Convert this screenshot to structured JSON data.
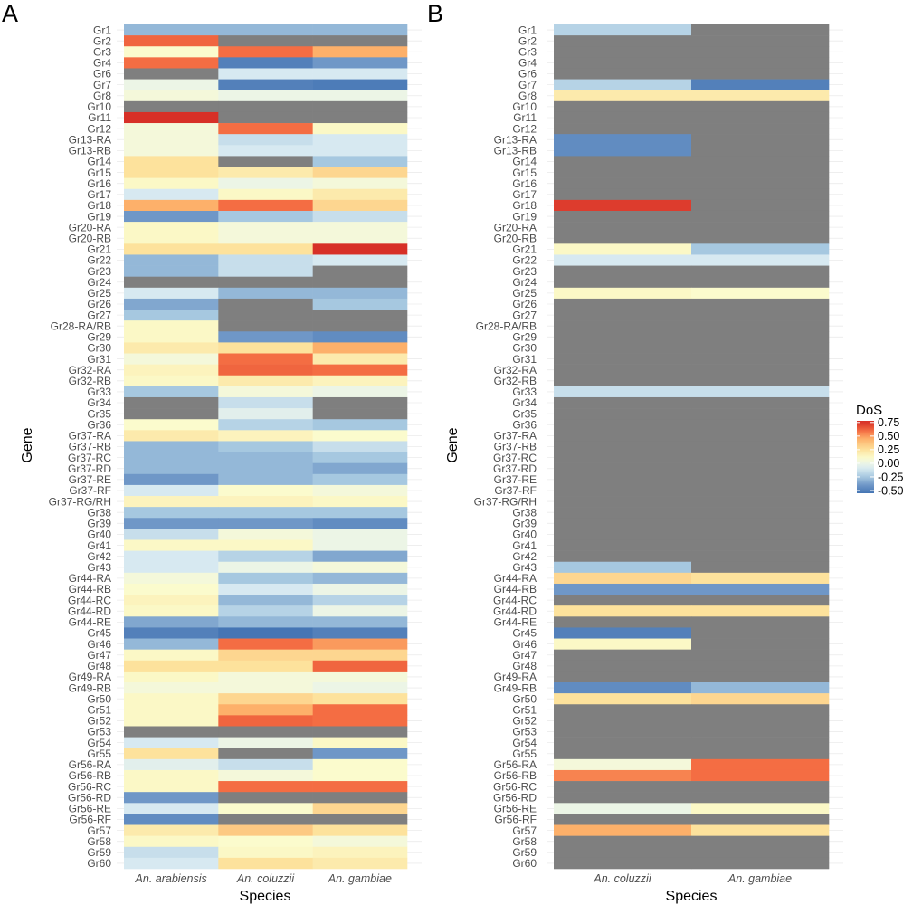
{
  "palette": {
    "na": "#7f7f7f",
    "stops": [
      {
        "v": -0.55,
        "c": "#4575b4"
      },
      {
        "v": -0.4,
        "c": "#6f97c7"
      },
      {
        "v": -0.25,
        "c": "#a6c8e0"
      },
      {
        "v": -0.1,
        "c": "#d7e9f1"
      },
      {
        "v": 0.0,
        "c": "#ecf5e6"
      },
      {
        "v": 0.1,
        "c": "#fbfbcd"
      },
      {
        "v": 0.25,
        "c": "#fde29c"
      },
      {
        "v": 0.45,
        "c": "#fdb06a"
      },
      {
        "v": 0.6,
        "c": "#f46d43"
      },
      {
        "v": 0.75,
        "c": "#d73027"
      }
    ]
  },
  "legend": {
    "title": "DoS",
    "labels": [
      "0.75",
      "0.50",
      "0.25",
      "0.00",
      "-0.25",
      "-0.50"
    ],
    "values": [
      0.75,
      0.5,
      0.25,
      0.0,
      -0.25,
      -0.5
    ],
    "range": [
      -0.55,
      0.78
    ]
  },
  "chart_data": [
    {
      "type": "heatmap",
      "panel_label": "A",
      "xlabel": "Species",
      "ylabel": "Gene",
      "species": [
        "An. arabiensis",
        "An. coluzzii",
        "An. gambiae"
      ],
      "genes": [
        "Gr1",
        "Gr2",
        "Gr3",
        "Gr4",
        "Gr6",
        "Gr7",
        "Gr8",
        "Gr10",
        "Gr11",
        "Gr12",
        "Gr13-RA",
        "Gr13-RB",
        "Gr14",
        "Gr15",
        "Gr16",
        "Gr17",
        "Gr18",
        "Gr19",
        "Gr20-RA",
        "Gr20-RB",
        "Gr21",
        "Gr22",
        "Gr23",
        "Gr24",
        "Gr25",
        "Gr26",
        "Gr27",
        "Gr28-RA/RB",
        "Gr29",
        "Gr30",
        "Gr31",
        "Gr32-RA",
        "Gr32-RB",
        "Gr33",
        "Gr34",
        "Gr35",
        "Gr36",
        "Gr37-RA",
        "Gr37-RB",
        "Gr37-RC",
        "Gr37-RD",
        "Gr37-RE",
        "Gr37-RF",
        "Gr37-RG/RH",
        "Gr38",
        "Gr39",
        "Gr40",
        "Gr41",
        "Gr42",
        "Gr43",
        "Gr44-RA",
        "Gr44-RB",
        "Gr44-RC",
        "Gr44-RD",
        "Gr44-RE",
        "Gr45",
        "Gr46",
        "Gr47",
        "Gr48",
        "Gr49-RA",
        "Gr49-RB",
        "Gr50",
        "Gr51",
        "Gr52",
        "Gr53",
        "Gr54",
        "Gr55",
        "Gr56-RA",
        "Gr56-RB",
        "Gr56-RC",
        "Gr56-RD",
        "Gr56-RE",
        "Gr56-RF",
        "Gr57",
        "Gr58",
        "Gr59",
        "Gr60"
      ],
      "values": [
        [
          -0.3,
          -0.3,
          -0.3
        ],
        [
          0.62,
          null,
          null
        ],
        [
          0.1,
          0.6,
          0.45
        ],
        [
          0.6,
          -0.5,
          -0.4
        ],
        [
          null,
          -0.1,
          -0.1
        ],
        [
          0.0,
          -0.5,
          -0.52
        ],
        [
          0.05,
          0.0,
          0.0
        ],
        [
          null,
          null,
          null
        ],
        [
          0.75,
          null,
          null
        ],
        [
          0.05,
          0.6,
          0.12
        ],
        [
          0.05,
          -0.15,
          -0.1
        ],
        [
          0.05,
          -0.1,
          -0.1
        ],
        [
          0.25,
          null,
          -0.25
        ],
        [
          0.25,
          0.2,
          0.3
        ],
        [
          0.12,
          0.0,
          0.05
        ],
        [
          -0.1,
          0.12,
          0.2
        ],
        [
          0.45,
          0.6,
          0.3
        ],
        [
          -0.4,
          -0.25,
          -0.15
        ],
        [
          0.12,
          0.05,
          0.05
        ],
        [
          0.12,
          0.05,
          0.05
        ],
        [
          0.25,
          0.25,
          0.75
        ],
        [
          -0.3,
          -0.15,
          -0.1
        ],
        [
          -0.3,
          -0.15,
          null
        ],
        [
          null,
          null,
          null
        ],
        [
          -0.1,
          -0.3,
          -0.3
        ],
        [
          -0.35,
          null,
          -0.25
        ],
        [
          -0.25,
          null,
          null
        ],
        [
          0.12,
          null,
          null
        ],
        [
          0.12,
          -0.4,
          -0.45
        ],
        [
          0.2,
          0.25,
          0.45
        ],
        [
          0.05,
          0.6,
          0.2
        ],
        [
          0.15,
          0.62,
          0.6
        ],
        [
          0.12,
          0.2,
          0.15
        ],
        [
          -0.25,
          0.05,
          0.0
        ],
        [
          null,
          -0.15,
          null
        ],
        [
          null,
          -0.05,
          null
        ],
        [
          0.1,
          -0.2,
          -0.25
        ],
        [
          0.2,
          0.15,
          0.1
        ],
        [
          -0.3,
          -0.25,
          -0.15
        ],
        [
          -0.3,
          -0.3,
          -0.25
        ],
        [
          -0.3,
          -0.3,
          -0.35
        ],
        [
          -0.4,
          -0.3,
          -0.25
        ],
        [
          -0.1,
          0.1,
          0.05
        ],
        [
          0.15,
          0.15,
          0.12
        ],
        [
          -0.25,
          -0.25,
          -0.25
        ],
        [
          -0.4,
          -0.4,
          -0.45
        ],
        [
          -0.15,
          0.05,
          0.0
        ],
        [
          0.12,
          0.12,
          0.0
        ],
        [
          -0.1,
          -0.2,
          -0.35
        ],
        [
          -0.1,
          0.0,
          0.05
        ],
        [
          0.05,
          -0.25,
          -0.3
        ],
        [
          0.1,
          -0.1,
          0.0
        ],
        [
          0.15,
          -0.3,
          -0.2
        ],
        [
          0.12,
          -0.2,
          0.0
        ],
        [
          -0.35,
          -0.3,
          -0.3
        ],
        [
          -0.5,
          -0.55,
          -0.5
        ],
        [
          -0.3,
          0.6,
          0.5
        ],
        [
          0.12,
          0.3,
          0.3
        ],
        [
          0.25,
          0.25,
          0.62
        ],
        [
          0.12,
          0.05,
          0.05
        ],
        [
          0.05,
          0.05,
          0.0
        ],
        [
          0.12,
          0.3,
          0.25
        ],
        [
          0.12,
          0.45,
          0.6
        ],
        [
          0.12,
          0.62,
          0.6
        ],
        [
          null,
          null,
          null
        ],
        [
          -0.1,
          0.0,
          0.12
        ],
        [
          0.25,
          null,
          -0.4
        ],
        [
          -0.05,
          -0.15,
          0.1
        ],
        [
          0.12,
          0.05,
          0.1
        ],
        [
          0.12,
          0.6,
          0.6
        ],
        [
          -0.4,
          null,
          null
        ],
        [
          -0.1,
          0.1,
          0.3
        ],
        [
          -0.45,
          null,
          null
        ],
        [
          0.2,
          0.35,
          0.25
        ],
        [
          0.12,
          0.1,
          0.05
        ],
        [
          -0.15,
          0.12,
          0.15
        ],
        [
          -0.1,
          0.25,
          0.2
        ]
      ]
    },
    {
      "type": "heatmap",
      "panel_label": "B",
      "xlabel": "Species",
      "ylabel": "Gene",
      "species": [
        "An. coluzzii",
        "An. gambiae"
      ],
      "genes": [
        "Gr1",
        "Gr2",
        "Gr3",
        "Gr4",
        "Gr6",
        "Gr7",
        "Gr8",
        "Gr10",
        "Gr11",
        "Gr12",
        "Gr13-RA",
        "Gr13-RB",
        "Gr14",
        "Gr15",
        "Gr16",
        "Gr17",
        "Gr18",
        "Gr19",
        "Gr20-RA",
        "Gr20-RB",
        "Gr21",
        "Gr22",
        "Gr23",
        "Gr24",
        "Gr25",
        "Gr26",
        "Gr27",
        "Gr28-RA/RB",
        "Gr29",
        "Gr30",
        "Gr31",
        "Gr32-RA",
        "Gr32-RB",
        "Gr33",
        "Gr34",
        "Gr35",
        "Gr36",
        "Gr37-RA",
        "Gr37-RB",
        "Gr37-RC",
        "Gr37-RD",
        "Gr37-RE",
        "Gr37-RF",
        "Gr37-RG/RH",
        "Gr38",
        "Gr39",
        "Gr40",
        "Gr41",
        "Gr42",
        "Gr43",
        "Gr44-RA",
        "Gr44-RB",
        "Gr44-RC",
        "Gr44-RD",
        "Gr44-RE",
        "Gr45",
        "Gr46",
        "Gr47",
        "Gr48",
        "Gr49-RA",
        "Gr49-RB",
        "Gr50",
        "Gr51",
        "Gr52",
        "Gr53",
        "Gr54",
        "Gr55",
        "Gr56-RA",
        "Gr56-RB",
        "Gr56-RC",
        "Gr56-RD",
        "Gr56-RE",
        "Gr56-RF",
        "Gr57",
        "Gr58",
        "Gr59",
        "Gr60"
      ],
      "values": [
        [
          -0.2,
          null
        ],
        [
          null,
          null
        ],
        [
          null,
          null
        ],
        [
          null,
          null
        ],
        [
          null,
          null
        ],
        [
          -0.2,
          -0.5
        ],
        [
          0.2,
          0.2
        ],
        [
          null,
          null
        ],
        [
          null,
          null
        ],
        [
          null,
          null
        ],
        [
          -0.45,
          null
        ],
        [
          -0.45,
          null
        ],
        [
          null,
          null
        ],
        [
          null,
          null
        ],
        [
          null,
          null
        ],
        [
          null,
          null
        ],
        [
          0.72,
          null
        ],
        [
          null,
          null
        ],
        [
          null,
          null
        ],
        [
          null,
          null
        ],
        [
          0.12,
          -0.25
        ],
        [
          -0.1,
          -0.1
        ],
        [
          null,
          null
        ],
        [
          null,
          null
        ],
        [
          0.12,
          0.1
        ],
        [
          null,
          null
        ],
        [
          null,
          null
        ],
        [
          null,
          null
        ],
        [
          null,
          null
        ],
        [
          null,
          null
        ],
        [
          null,
          null
        ],
        [
          null,
          null
        ],
        [
          null,
          null
        ],
        [
          -0.15,
          -0.15
        ],
        [
          null,
          null
        ],
        [
          null,
          null
        ],
        [
          null,
          null
        ],
        [
          null,
          null
        ],
        [
          null,
          null
        ],
        [
          null,
          null
        ],
        [
          null,
          null
        ],
        [
          null,
          null
        ],
        [
          null,
          null
        ],
        [
          null,
          null
        ],
        [
          null,
          null
        ],
        [
          null,
          null
        ],
        [
          null,
          null
        ],
        [
          null,
          null
        ],
        [
          null,
          null
        ],
        [
          -0.25,
          null
        ],
        [
          0.3,
          0.25
        ],
        [
          -0.4,
          -0.4
        ],
        [
          null,
          null
        ],
        [
          0.25,
          0.25
        ],
        [
          null,
          null
        ],
        [
          -0.5,
          null
        ],
        [
          0.12,
          null
        ],
        [
          null,
          null
        ],
        [
          null,
          null
        ],
        [
          null,
          null
        ],
        [
          -0.45,
          -0.3
        ],
        [
          0.25,
          0.3
        ],
        [
          null,
          null
        ],
        [
          null,
          null
        ],
        [
          null,
          null
        ],
        [
          null,
          null
        ],
        [
          null,
          null
        ],
        [
          0.05,
          0.6
        ],
        [
          0.55,
          0.6
        ],
        [
          null,
          null
        ],
        [
          null,
          null
        ],
        [
          0.0,
          0.12
        ],
        [
          null,
          null
        ],
        [
          0.45,
          0.25
        ],
        [
          null,
          null
        ],
        [
          null,
          null
        ],
        [
          null,
          null
        ]
      ]
    }
  ]
}
